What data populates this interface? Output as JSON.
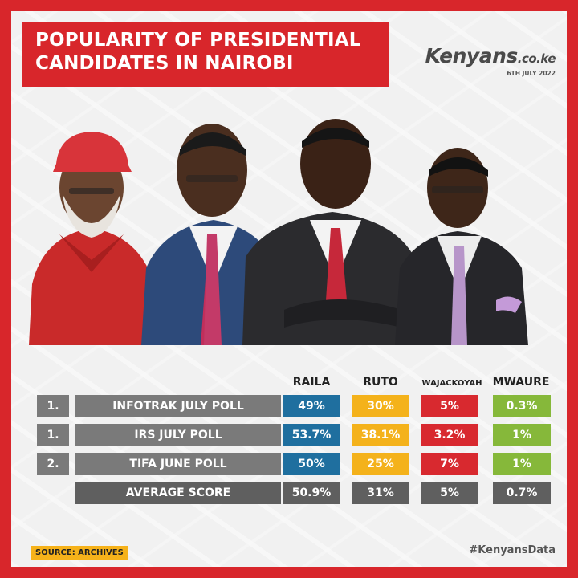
{
  "header": {
    "title_line1": "POPULARITY OF PRESIDENTIAL",
    "title_line2": "CANDIDATES IN NAIROBI"
  },
  "brand": {
    "name": "Kenyans",
    "suffix": ".co.ke",
    "date": "6TH JULY 2022"
  },
  "colors": {
    "raila": "#1f6f9f",
    "ruto": "#f4b21b",
    "wajackoyah": "#d8292f",
    "mwaure": "#86b83a",
    "accent": "#d8262b"
  },
  "chart_data": {
    "type": "table",
    "columns": [
      "RAILA",
      "RUTO",
      "WAJACKOYAH",
      "MWAURE"
    ],
    "rows": [
      {
        "rank": "1.",
        "poll": "INFOTRAK JULY POLL",
        "values": [
          "49%",
          "30%",
          "5%",
          "0.3%"
        ]
      },
      {
        "rank": "1.",
        "poll": "IRS JULY POLL",
        "values": [
          "53.7%",
          "38.1%",
          "3.2%",
          "1%"
        ]
      },
      {
        "rank": "2.",
        "poll": "TIFA JUNE POLL",
        "values": [
          "50%",
          "25%",
          "7%",
          "1%"
        ]
      }
    ],
    "average": {
      "label": "AVERAGE SCORE",
      "values": [
        "50.9%",
        "31%",
        "5%",
        "0.7%"
      ]
    }
  },
  "footer": {
    "source": "SOURCE: ARCHIVES",
    "hashtag": "#KenyansData"
  }
}
